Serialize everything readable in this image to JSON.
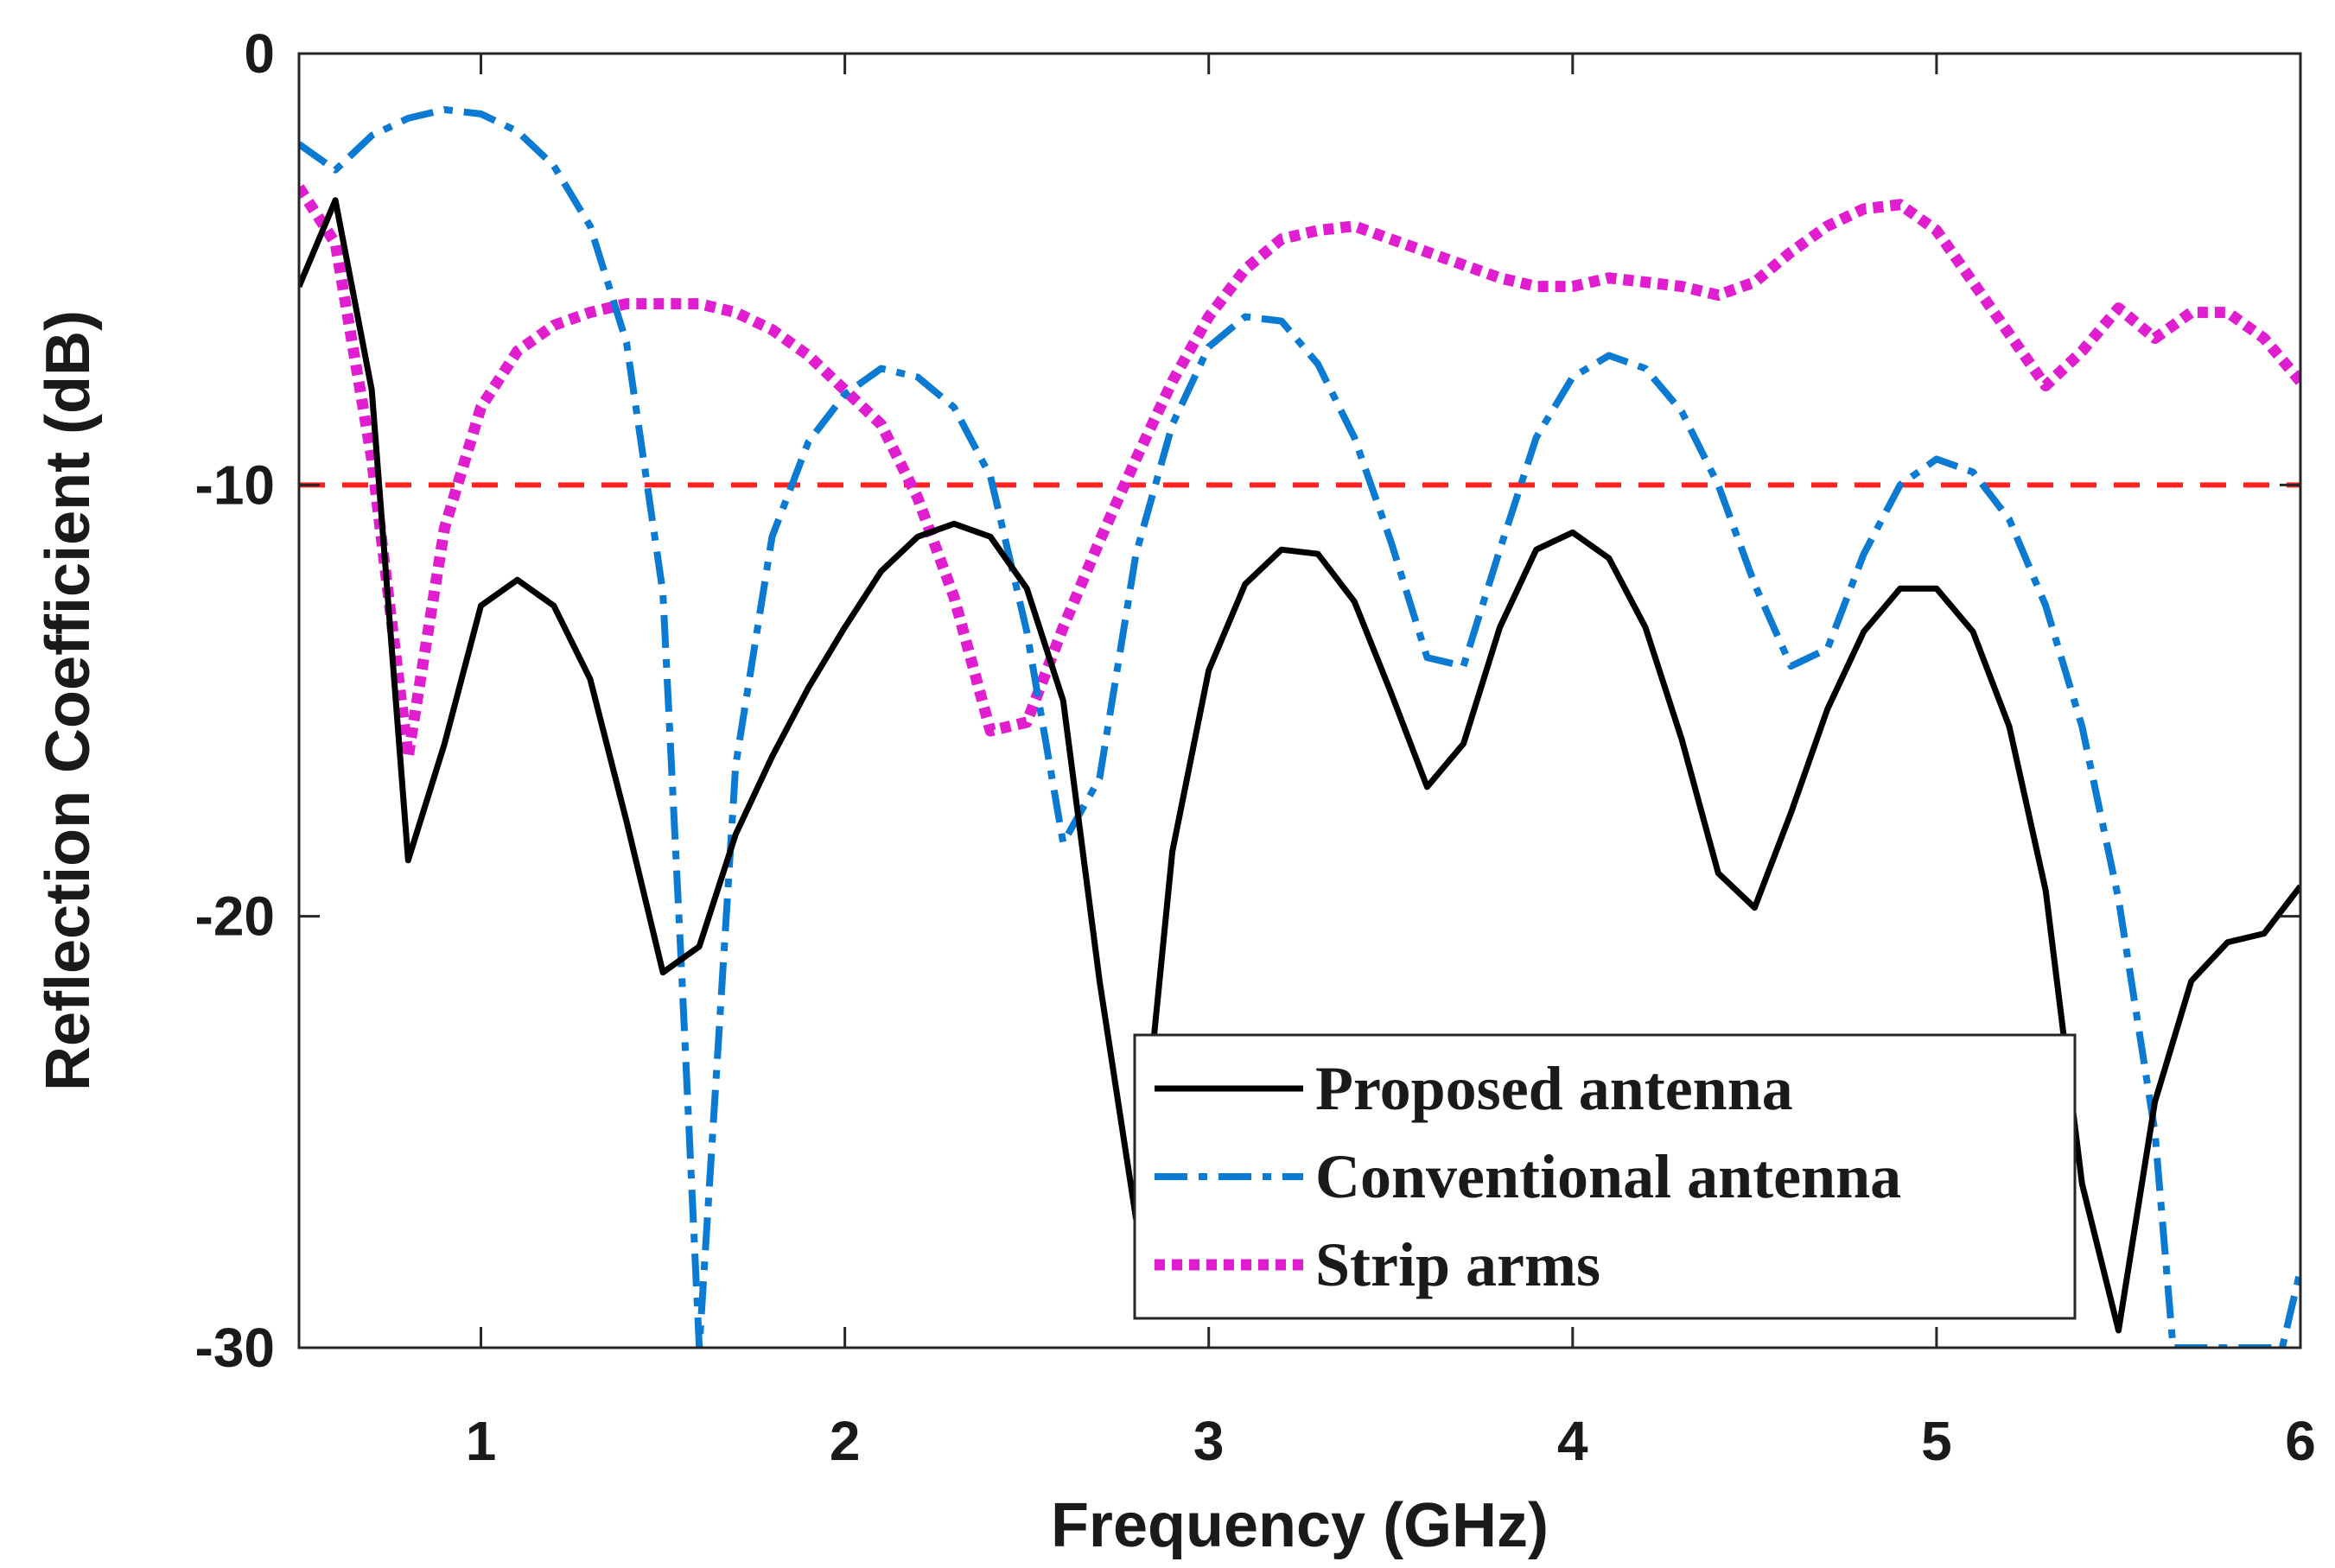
{
  "chart_data": {
    "type": "line",
    "xlabel": "Frequency (GHz)",
    "ylabel": "Reflection Coefficient (dB)",
    "xlim": [
      0.5,
      6
    ],
    "ylim": [
      -30,
      0
    ],
    "xticks": [
      1,
      2,
      3,
      4,
      5,
      6
    ],
    "yticks": [
      0,
      -10,
      -20,
      -30
    ],
    "grid": false,
    "legend_position": "bottom-center",
    "reference_line": {
      "y": -10,
      "color": "#ff2020",
      "style": "dashed"
    },
    "series": [
      {
        "name": "Proposed antenna",
        "color": "#000000",
        "style": "solid",
        "x": [
          0.5,
          0.6,
          0.7,
          0.8,
          0.9,
          1.0,
          1.1,
          1.2,
          1.3,
          1.4,
          1.5,
          1.6,
          1.7,
          1.8,
          1.9,
          2.0,
          2.1,
          2.2,
          2.3,
          2.4,
          2.5,
          2.6,
          2.7,
          2.8,
          2.9,
          3.0,
          3.1,
          3.2,
          3.3,
          3.4,
          3.5,
          3.6,
          3.7,
          3.8,
          3.9,
          4.0,
          4.1,
          4.2,
          4.3,
          4.4,
          4.5,
          4.6,
          4.7,
          4.8,
          4.9,
          5.0,
          5.1,
          5.2,
          5.3,
          5.4,
          5.5,
          5.6,
          5.7,
          5.8,
          5.9,
          6.0
        ],
        "y": [
          -5.4,
          -3.4,
          -7.8,
          -18.7,
          -16.0,
          -12.8,
          -12.2,
          -12.8,
          -14.5,
          -17.8,
          -21.3,
          -20.7,
          -18.1,
          -16.3,
          -14.7,
          -13.3,
          -12.0,
          -11.2,
          -10.9,
          -11.2,
          -12.4,
          -15.0,
          -21.5,
          -27.0,
          -18.5,
          -14.3,
          -12.3,
          -11.5,
          -11.6,
          -12.7,
          -14.8,
          -17.0,
          -16.0,
          -13.3,
          -11.5,
          -11.1,
          -11.7,
          -13.3,
          -15.9,
          -19.0,
          -19.8,
          -17.6,
          -15.2,
          -13.4,
          -12.4,
          -12.4,
          -13.4,
          -15.6,
          -19.4,
          -26.2,
          -29.6,
          -24.3,
          -21.5,
          -20.6,
          -20.4,
          -19.3
        ]
      },
      {
        "name": "Conventional antenna",
        "color": "#0a7ad2",
        "style": "dashdot",
        "x": [
          0.5,
          0.6,
          0.7,
          0.8,
          0.9,
          1.0,
          1.1,
          1.2,
          1.3,
          1.4,
          1.5,
          1.55,
          1.6,
          1.7,
          1.8,
          1.9,
          2.0,
          2.1,
          2.2,
          2.3,
          2.4,
          2.5,
          2.6,
          2.7,
          2.8,
          2.9,
          3.0,
          3.1,
          3.2,
          3.3,
          3.4,
          3.5,
          3.6,
          3.7,
          3.8,
          3.9,
          4.0,
          4.1,
          4.2,
          4.3,
          4.4,
          4.5,
          4.6,
          4.7,
          4.8,
          4.9,
          5.0,
          5.1,
          5.2,
          5.3,
          5.4,
          5.5,
          5.6,
          5.65,
          5.95,
          6.0
        ],
        "y": [
          -2.1,
          -2.7,
          -1.9,
          -1.5,
          -1.3,
          -1.4,
          -1.8,
          -2.6,
          -4.0,
          -6.7,
          -12.5,
          -21.0,
          -30.0,
          -16.5,
          -11.2,
          -9.0,
          -7.9,
          -7.3,
          -7.5,
          -8.2,
          -9.8,
          -13.4,
          -18.3,
          -16.8,
          -11.6,
          -8.6,
          -6.8,
          -6.1,
          -6.2,
          -7.2,
          -8.9,
          -11.3,
          -14.0,
          -14.2,
          -11.5,
          -8.9,
          -7.5,
          -7.0,
          -7.3,
          -8.3,
          -10.0,
          -12.3,
          -14.2,
          -13.8,
          -11.6,
          -10.0,
          -9.4,
          -9.7,
          -10.8,
          -12.8,
          -15.6,
          -19.6,
          -25.0,
          -30.0,
          -30.0,
          -28.2
        ]
      },
      {
        "name": "Strip arms",
        "color": "#e01ed0",
        "style": "dotted",
        "x": [
          0.5,
          0.6,
          0.7,
          0.8,
          0.9,
          1.0,
          1.1,
          1.2,
          1.3,
          1.4,
          1.5,
          1.6,
          1.7,
          1.8,
          1.9,
          2.0,
          2.1,
          2.2,
          2.3,
          2.4,
          2.5,
          2.6,
          2.7,
          2.8,
          2.9,
          3.0,
          3.1,
          3.2,
          3.3,
          3.4,
          3.5,
          3.6,
          3.7,
          3.8,
          3.9,
          4.0,
          4.1,
          4.2,
          4.3,
          4.4,
          4.5,
          4.6,
          4.7,
          4.8,
          4.9,
          5.0,
          5.1,
          5.2,
          5.3,
          5.4,
          5.5,
          5.6,
          5.7,
          5.8,
          5.9,
          6.0
        ],
        "y": [
          -3.1,
          -4.4,
          -9.4,
          -16.3,
          -11.0,
          -8.2,
          -6.9,
          -6.3,
          -6.0,
          -5.8,
          -5.8,
          -5.8,
          -6.0,
          -6.4,
          -7.0,
          -7.8,
          -8.6,
          -10.3,
          -12.6,
          -15.7,
          -15.5,
          -13.3,
          -11.3,
          -9.4,
          -7.6,
          -6.1,
          -5.0,
          -4.3,
          -4.1,
          -4.0,
          -4.3,
          -4.6,
          -4.9,
          -5.2,
          -5.4,
          -5.4,
          -5.2,
          -5.3,
          -5.4,
          -5.6,
          -5.3,
          -4.6,
          -4.0,
          -3.6,
          -3.5,
          -4.1,
          -5.3,
          -6.5,
          -7.7,
          -6.9,
          -5.9,
          -6.6,
          -6.0,
          -6.0,
          -6.6,
          -7.6
        ]
      }
    ]
  }
}
